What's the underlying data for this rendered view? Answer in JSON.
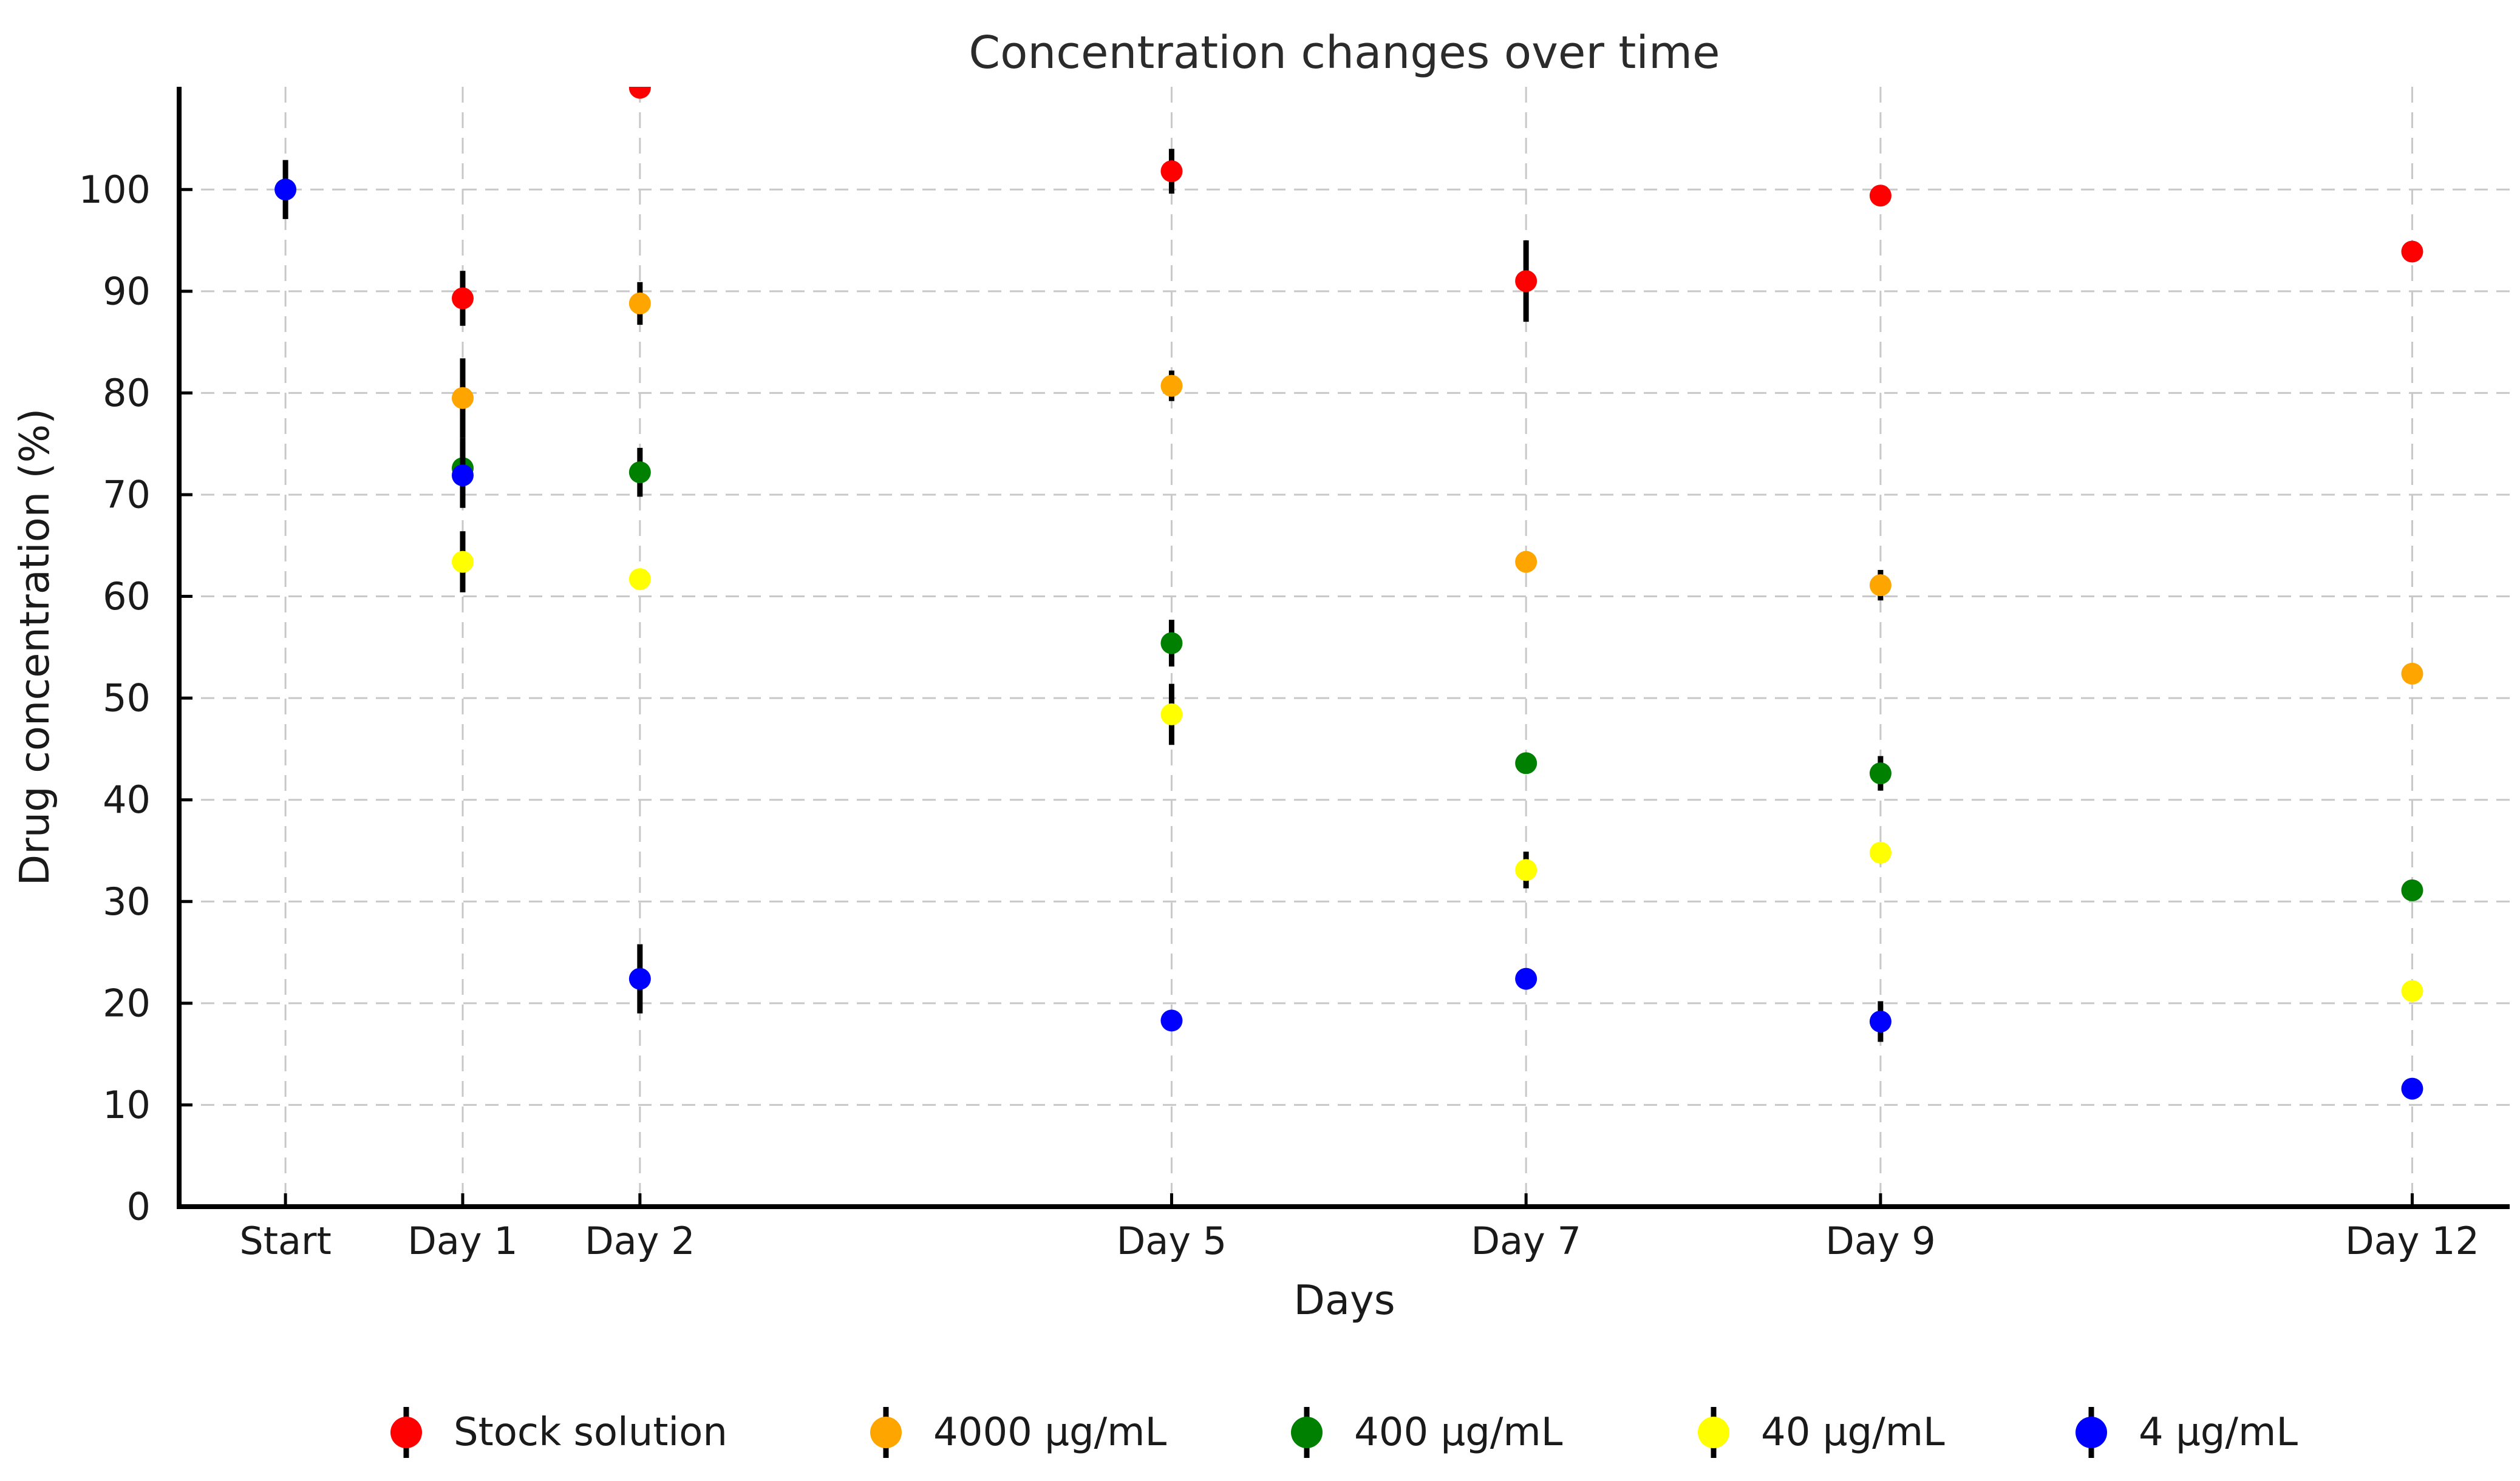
{
  "figure": {
    "background": "#ffffff",
    "text_color": "#1a1a1a",
    "axis_color": "#000000",
    "grid_color": "#c8c8c8",
    "errorbar_color": "#000000"
  },
  "chart_data": {
    "type": "scatter",
    "title": "Concentration changes over time",
    "xlabel": "Days",
    "ylabel": "Drug concentration (%)",
    "grid": "dashed",
    "legend_position": "bottom",
    "xlim": [
      -0.6,
      12.55
    ],
    "ylim": [
      0,
      110.1
    ],
    "y_ticks": [
      0,
      10,
      20,
      30,
      40,
      50,
      60,
      70,
      80,
      90,
      100
    ],
    "x_ticks": [
      {
        "x": 0,
        "label": "Start"
      },
      {
        "x": 1,
        "label": "Day 1"
      },
      {
        "x": 2,
        "label": "Day 2"
      },
      {
        "x": 5,
        "label": "Day 5"
      },
      {
        "x": 7,
        "label": "Day 7"
      },
      {
        "x": 9,
        "label": "Day 9"
      },
      {
        "x": 12,
        "label": "Day 12"
      }
    ],
    "series": [
      {
        "name": "Stock solution",
        "color": "#ff0000",
        "points": [
          {
            "x": 1,
            "y": 89.3,
            "err": 2.7
          },
          {
            "x": 2,
            "y": 110.0,
            "err": 0.0
          },
          {
            "x": 5,
            "y": 101.8,
            "err": 2.2
          },
          {
            "x": 7,
            "y": 91.0,
            "err": 4.0
          },
          {
            "x": 9,
            "y": 99.4,
            "err": 0.8
          },
          {
            "x": 12,
            "y": 93.9,
            "err": 0.6
          }
        ]
      },
      {
        "name": "4000 µg/mL",
        "color": "#ffa500",
        "points": [
          {
            "x": 1,
            "y": 79.5,
            "err": 3.9
          },
          {
            "x": 2,
            "y": 88.8,
            "err": 2.1
          },
          {
            "x": 5,
            "y": 80.7,
            "err": 1.5
          },
          {
            "x": 7,
            "y": 63.4,
            "err": 0.7
          },
          {
            "x": 9,
            "y": 61.1,
            "err": 1.5
          },
          {
            "x": 12,
            "y": 52.4,
            "err": 0.6
          }
        ]
      },
      {
        "name": "400 µg/mL",
        "color": "#008000",
        "points": [
          {
            "x": 1,
            "y": 72.6,
            "err": 3.0
          },
          {
            "x": 2,
            "y": 72.2,
            "err": 2.4
          },
          {
            "x": 5,
            "y": 55.4,
            "err": 2.3
          },
          {
            "x": 7,
            "y": 43.6,
            "err": 0.8
          },
          {
            "x": 9,
            "y": 42.6,
            "err": 1.7
          },
          {
            "x": 12,
            "y": 31.1,
            "err": 0.6
          }
        ]
      },
      {
        "name": "40 µg/mL",
        "color": "#ffff00",
        "points": [
          {
            "x": 1,
            "y": 63.4,
            "err": 3.0
          },
          {
            "x": 2,
            "y": 61.7,
            "err": 0.5
          },
          {
            "x": 5,
            "y": 48.4,
            "err": 3.0
          },
          {
            "x": 7,
            "y": 33.1,
            "err": 1.8
          },
          {
            "x": 9,
            "y": 34.8,
            "err": 0.6
          },
          {
            "x": 12,
            "y": 21.2,
            "err": 0.5
          }
        ]
      },
      {
        "name": "4 µg/mL",
        "color": "#0000ff",
        "points": [
          {
            "x": 0,
            "y": 100.0,
            "err": 2.9
          },
          {
            "x": 1,
            "y": 71.9,
            "err": 3.2
          },
          {
            "x": 2,
            "y": 22.4,
            "err": 3.4
          },
          {
            "x": 5,
            "y": 18.3,
            "err": 0.8
          },
          {
            "x": 7,
            "y": 22.4,
            "err": 0.6
          },
          {
            "x": 9,
            "y": 18.2,
            "err": 2.0
          },
          {
            "x": 12,
            "y": 11.6,
            "err": 0.5
          }
        ]
      }
    ],
    "legend_item_x": [
      669,
      1459,
      2152,
      2822,
      3444
    ]
  }
}
